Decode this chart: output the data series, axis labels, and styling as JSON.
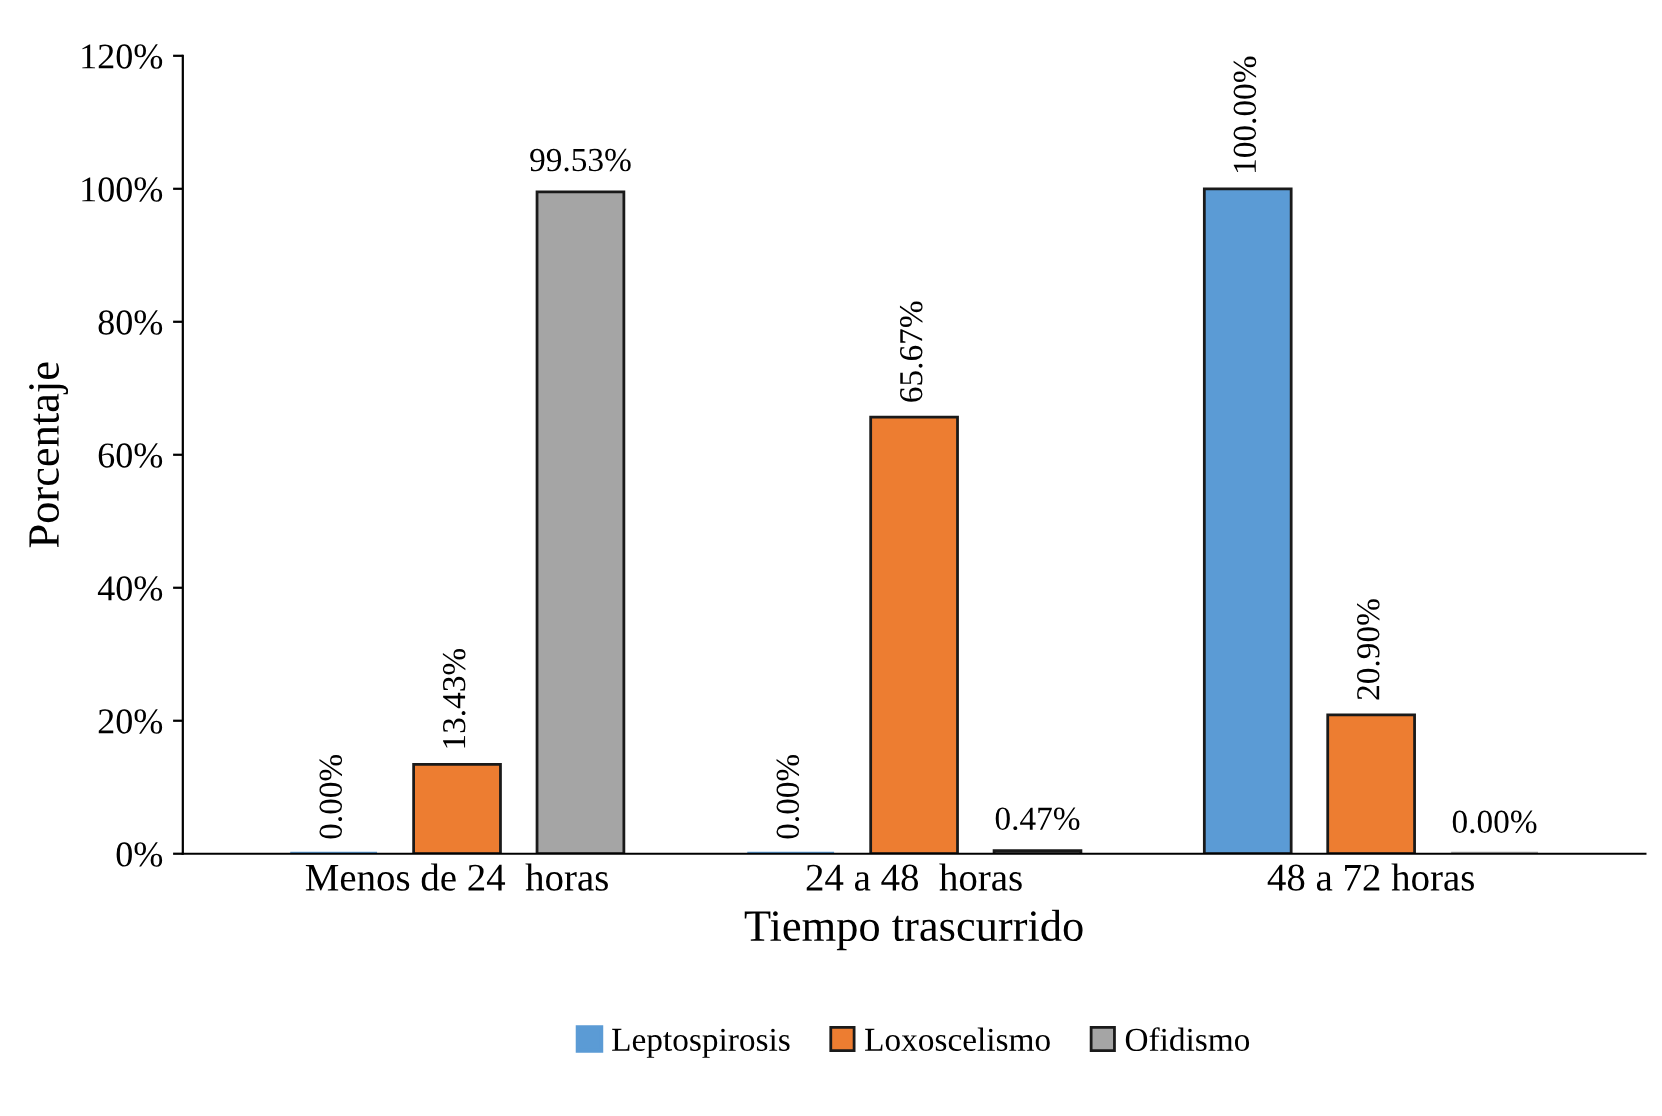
{
  "chart_data": {
    "type": "bar",
    "xlabel": "Tiempo trascurrido",
    "ylabel": "Porcentaje",
    "categories": [
      "Menos de 24  horas",
      "24 a 48  horas",
      "48 a 72 horas"
    ],
    "series": [
      {
        "name": "Leptospirosis",
        "color": "#5b9bd5",
        "values": [
          0,
          0,
          100
        ],
        "value_labels": [
          "0.00%",
          "0.00%",
          "100.00%"
        ]
      },
      {
        "name": "Loxoscelismo",
        "color": "#ed7d31",
        "values": [
          13.43,
          65.67,
          20.9
        ],
        "value_labels": [
          "13.43%",
          "65.67%",
          "20.90%"
        ]
      },
      {
        "name": "Ofidismo",
        "color": "#a5a5a5",
        "values": [
          99.53,
          0.47,
          0
        ],
        "value_labels": [
          "99.53%",
          "0.47%",
          "0.00%"
        ]
      }
    ],
    "ylim": [
      0,
      120
    ],
    "yticks": [
      {
        "value": 0,
        "label": "0%"
      },
      {
        "value": 20,
        "label": "20%"
      },
      {
        "value": 40,
        "label": "40%"
      },
      {
        "value": 60,
        "label": "60%"
      },
      {
        "value": 80,
        "label": "80%"
      },
      {
        "value": 100,
        "label": "100%"
      },
      {
        "value": 120,
        "label": "120%"
      }
    ],
    "grid": false,
    "legend": "bottom"
  }
}
